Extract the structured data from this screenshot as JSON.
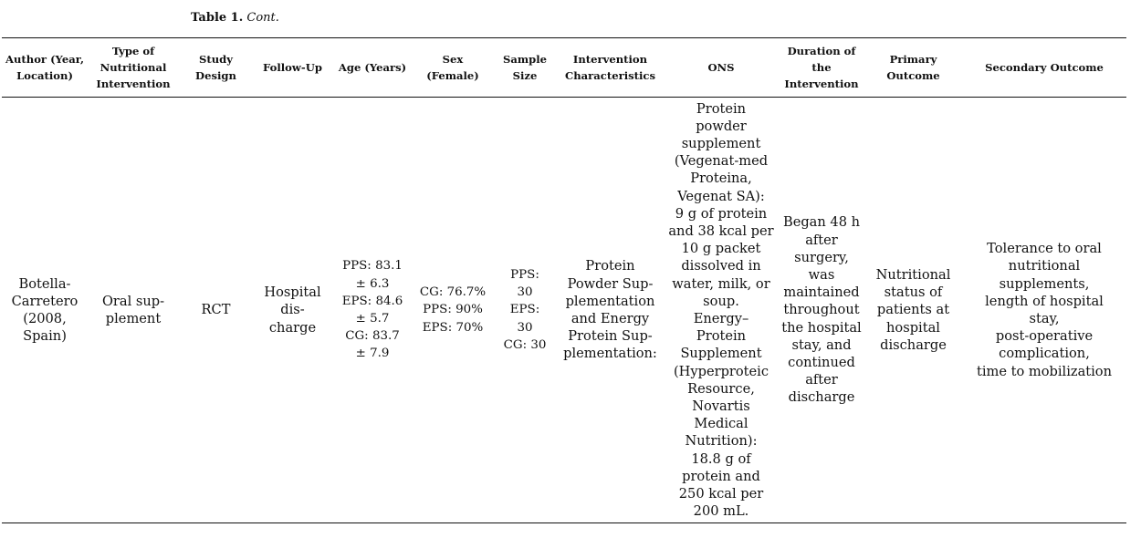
{
  "caption": {
    "label": "Table 1.",
    "cont": "Cont."
  },
  "headers": {
    "author": "Author (Year, Location)",
    "type": "Type of Nutritional Intervention",
    "design": "Study Design",
    "followup": "Follow-Up",
    "age": "Age (Years)",
    "sex": "Sex (Female)",
    "sample": "Sample Size",
    "intervention": "Intervention Characteristics",
    "ons": "ONS",
    "duration": "Duration of the Intervention",
    "primary": "Primary Outcome",
    "secondary": "Secondary Outcome"
  },
  "row": {
    "author": "Botella-\nCarretero\n(2008,\nSpain)",
    "type": "Oral sup-\nplement",
    "design": "RCT",
    "followup": "Hospital\ndis-\ncharge",
    "age": "PPS: 83.1\n± 6.3\nEPS: 84.6\n± 5.7\nCG: 83.7\n± 7.9",
    "sex": "CG: 76.7%\nPPS: 90%\nEPS: 70%",
    "sample": "PPS:\n30\nEPS:\n30\nCG: 30",
    "intervention": "Protein\nPowder Sup-\nplementation\nand Energy\nProtein Sup-\nplementation:",
    "ons": "Protein\npowder\nsupplement\n(Vegenat-med\nProteina,\nVegenat SA):\n9 g of protein\nand 38 kcal per\n10 g packet\ndissolved in\nwater, milk, or\nsoup.\nEnergy–\nProtein\nSupplement\n(Hyperproteic\nResource,\nNovartis\nMedical\nNutrition):\n18.8 g of\nprotein and\n250 kcal per\n200 mL.",
    "duration": "Began 48 h\nafter\nsurgery,\nwas\nmaintained\nthroughout\nthe hospital\nstay, and\ncontinued\nafter\ndischarge",
    "primary": "Nutritional\nstatus of\npatients at\nhospital\ndischarge",
    "secondary": "Tolerance to oral\nnutritional\nsupplements,\nlength of hospital\nstay,\npost-operative\ncomplication,\ntime to mobilization"
  }
}
